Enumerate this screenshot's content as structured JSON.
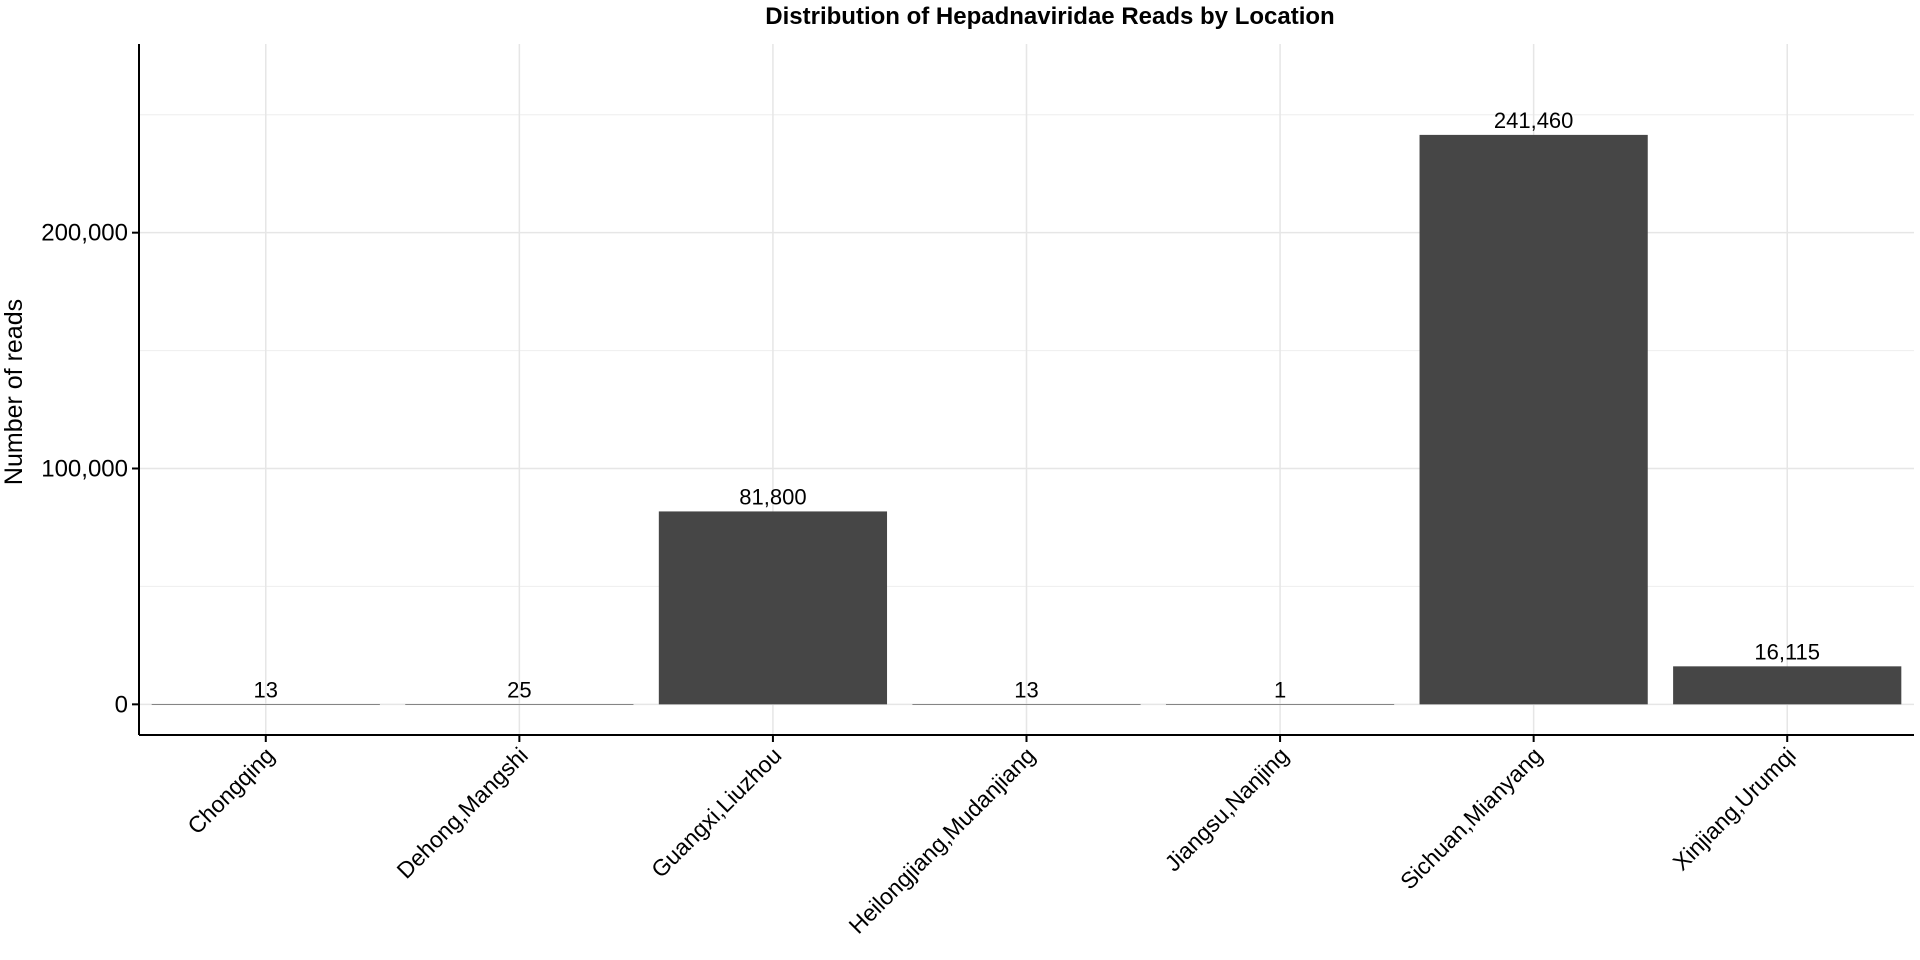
{
  "chart_data": {
    "type": "bar",
    "title": "Distribution of Hepadnaviridae Reads by Location",
    "xlabel": "",
    "ylabel": "Number of reads",
    "categories": [
      "Chongqing",
      "Dehong,Mangshi",
      "Guangxi,Liuzhou",
      "Heilongjiang,Mudanjiang",
      "Jiangsu,Nanjing",
      "Sichuan,Mianyang",
      "Xinjiang,Urumqi"
    ],
    "values": [
      13,
      25,
      81800,
      13,
      1,
      241460,
      16115
    ],
    "data_labels": [
      "13",
      "25",
      "81,800",
      "13",
      "1",
      "241,460",
      "16,115"
    ],
    "y_ticks": [
      0,
      100000,
      200000
    ],
    "y_tick_labels": [
      "0",
      "100,000",
      "200,000"
    ],
    "ylim": [
      -13000,
      280000
    ],
    "bar_color": "#464646",
    "grid": true,
    "legend": "none"
  }
}
